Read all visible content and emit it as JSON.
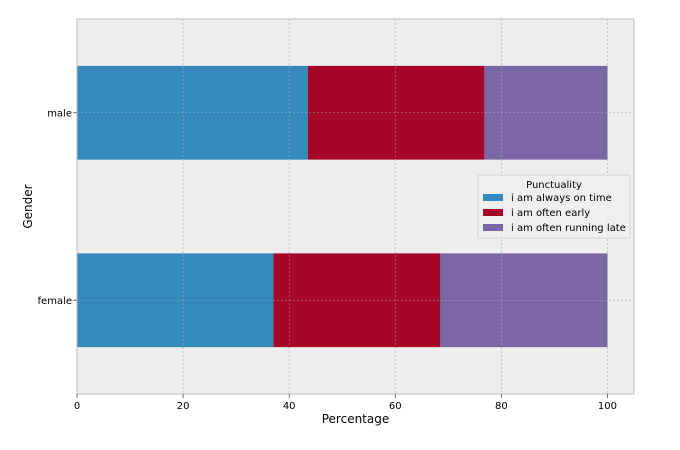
{
  "chart_data": {
    "type": "bar",
    "orientation": "horizontal",
    "stacked": true,
    "title": "",
    "xlabel": "Percentage",
    "ylabel": "Gender",
    "categories": [
      "female",
      "male"
    ],
    "xlim": [
      0,
      105
    ],
    "xticks": [
      0,
      20,
      40,
      60,
      80,
      100
    ],
    "grid": true,
    "series": [
      {
        "name": "i am always on time",
        "values": [
          37.0,
          43.5
        ],
        "color": "#348abd"
      },
      {
        "name": "i am often early",
        "values": [
          31.5,
          33.3
        ],
        "color": "#a60628"
      },
      {
        "name": "i am often running late",
        "values": [
          31.5,
          23.2
        ],
        "color": "#7a68a6"
      }
    ],
    "legend": {
      "title": "Punctuality",
      "placement": "center-right"
    },
    "colors": {
      "plot_background": "#eeeeee",
      "grid": "#b2b2b2",
      "axes_edge": "#bcbcbc"
    }
  }
}
